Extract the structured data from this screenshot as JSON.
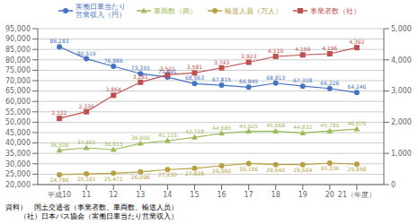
{
  "chart_data": {
    "type": "line",
    "x": [
      10,
      11,
      12,
      13,
      14,
      15,
      16,
      17,
      18,
      19,
      20,
      21
    ],
    "xlim": [
      9.2,
      22
    ],
    "xticks": [
      {
        "value": 10,
        "label": "平成10"
      },
      11,
      12,
      13,
      14,
      15,
      16,
      17,
      18,
      19,
      20,
      {
        "value": 21,
        "label": "21（年度）"
      }
    ],
    "ylim": [
      20000,
      95000
    ],
    "yticks": [
      {
        "value": 20000,
        "label": "20,000"
      },
      {
        "value": 25000,
        "label": "25,000"
      },
      {
        "value": 30000,
        "label": "30,000"
      },
      {
        "value": 35000,
        "label": "35,000"
      },
      {
        "value": 40000,
        "label": "40,000"
      },
      {
        "value": 45000,
        "label": "45,000"
      },
      {
        "value": 50000,
        "label": "50,000"
      },
      {
        "value": 55000,
        "label": "55,000"
      },
      {
        "value": 60000,
        "label": "60,000"
      },
      {
        "value": 65000,
        "label": "65,000"
      },
      {
        "value": 70000,
        "label": "70,000"
      },
      {
        "value": 75000,
        "label": "75,000"
      },
      {
        "value": 80000,
        "label": "80,000"
      },
      {
        "value": 85000,
        "label": "85,000"
      },
      {
        "value": 90000,
        "label": "90,000"
      },
      {
        "value": 95000,
        "label": "95,000"
      }
    ],
    "y2lim": [
      0,
      5000
    ],
    "y2ticks": [
      0,
      {
        "value": 1000,
        "label": "1,000"
      },
      {
        "value": 2000,
        "label": "2,000"
      },
      {
        "value": 3000,
        "label": "3,000"
      },
      {
        "value": 4000,
        "label": "4,000"
      },
      {
        "value": 5000,
        "label": "5,000"
      }
    ],
    "grid": true,
    "legend": "top",
    "data_labels": true,
    "series": [
      {
        "name": "実働日車当たり\n営業収入（円）",
        "color": "#4472C4",
        "marker": "circle",
        "values": [
          86283,
          80519,
          76886,
          73355,
          71691,
          68563,
          67815,
          66845,
          68813,
          67328,
          66226,
          64246
        ],
        "value_labels": [
          "86,283",
          "80,519",
          "76,886",
          "73,355",
          "71,691",
          "68,563",
          "67,815",
          "66,845",
          "68,813",
          "67,328",
          "66,226",
          "64,246"
        ]
      },
      {
        "name": "車両数（两）",
        "color": "#9BBB59",
        "marker": "triangle",
        "values": [
          36508,
          37661,
          36815,
          39806,
          41115,
          42718,
          44685,
          45625,
          45668,
          44832,
          45785,
          46676
        ],
        "value_labels": [
          "36,508",
          "37,661",
          "36,815",
          "39,806",
          "41,115",
          "42,718",
          "44,685",
          "45,625",
          "45,668",
          "44,832",
          "45,785",
          "46,676"
        ]
      },
      {
        "name": "輸送人員（万人）",
        "color": "#B8A040",
        "marker": "circle",
        "values": [
          24786,
          25161,
          25471,
          26096,
          27230,
          27838,
          29060,
          30156,
          29640,
          29604,
          30336,
          29858
        ],
        "value_labels": [
          "24,786",
          "25,161",
          "25,471",
          "26,096",
          "27,230",
          "27,838",
          "29,060",
          "30,156",
          "29,640",
          "29,604",
          "30,336",
          "29,858"
        ]
      },
      {
        "name": "事業者数（社）",
        "color": "#C0504D",
        "marker": "square",
        "axis": "y2",
        "values": [
          2122,
          2336,
          2864,
          3281,
          3521,
          3581,
          3743,
          3923,
          4110,
          4159,
          4196,
          4392
        ],
        "value_labels": [
          "2,122",
          "2,336",
          "2,864",
          "3,281",
          "3,521",
          "3,581",
          "3,743",
          "3,923",
          "4,110",
          "4,159",
          "4,196",
          "4,392"
        ]
      }
    ],
    "annotations": [
      "資料）　国土交通省（事業者数、車両数、輸送人员）",
      "　　（社）日本バス協会（実働日車当たり営業収入）"
    ]
  }
}
